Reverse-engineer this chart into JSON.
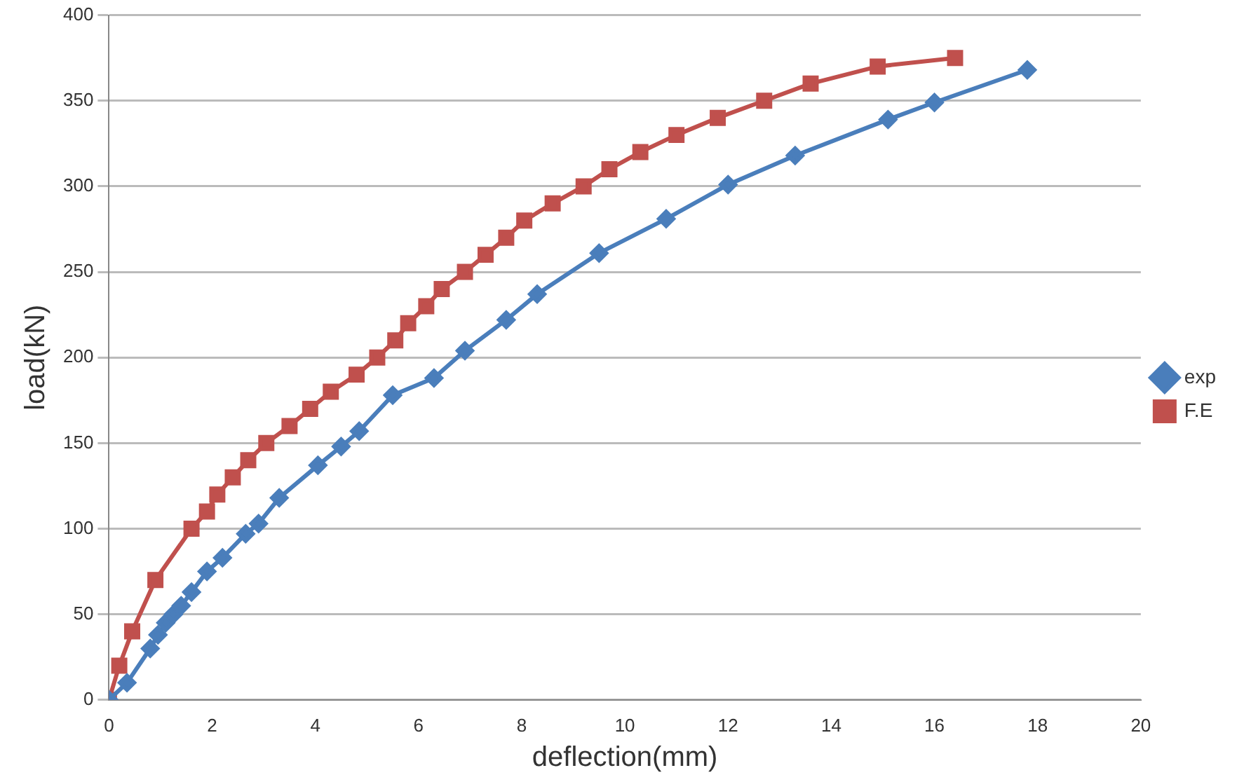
{
  "chart_data": {
    "type": "line",
    "xlabel": "deflection(mm)",
    "ylabel": "load(kN)",
    "xlim": [
      0,
      20
    ],
    "xticks": [
      0,
      2,
      4,
      6,
      8,
      10,
      12,
      14,
      16,
      18,
      20
    ],
    "ylim": [
      0,
      400
    ],
    "yticks": [
      0,
      50,
      100,
      150,
      200,
      250,
      300,
      350,
      400
    ],
    "grid": "y",
    "legend": "right",
    "line_style": "solid",
    "series": [
      {
        "name": "exp",
        "color": "#4a7ebb",
        "marker": "diamond",
        "x": [
          0,
          0.35,
          0.8,
          0.95,
          1.1,
          1.25,
          1.4,
          1.6,
          1.9,
          2.2,
          2.65,
          2.9,
          3.3,
          4.05,
          4.5,
          4.85,
          5.5,
          6.3,
          6.9,
          7.7,
          8.3,
          9.5,
          10.8,
          12,
          13.3,
          15.1,
          16,
          17.8
        ],
        "values": [
          0,
          10,
          30,
          38,
          45,
          50,
          55,
          63,
          75,
          83,
          97,
          103,
          118,
          137,
          148,
          157,
          178,
          188,
          204,
          222,
          237,
          261,
          281,
          301,
          318,
          339,
          349,
          368
        ]
      },
      {
        "name": "F.E",
        "color": "#c0504d",
        "marker": "square",
        "x": [
          0,
          0.2,
          0.45,
          0.9,
          1.6,
          1.9,
          2.1,
          2.4,
          2.7,
          3.05,
          3.5,
          3.9,
          4.3,
          4.8,
          5.2,
          5.55,
          5.8,
          6.15,
          6.45,
          6.9,
          7.3,
          7.7,
          8.05,
          8.6,
          9.2,
          9.7,
          10.3,
          11,
          11.8,
          12.7,
          13.6,
          14.9,
          16.4
        ],
        "values": [
          0,
          20,
          40,
          70,
          100,
          110,
          120,
          130,
          140,
          150,
          160,
          170,
          180,
          190,
          200,
          210,
          220,
          230,
          240,
          250,
          260,
          270,
          280,
          290,
          300,
          310,
          320,
          330,
          340,
          350,
          360,
          370,
          375
        ]
      }
    ]
  }
}
